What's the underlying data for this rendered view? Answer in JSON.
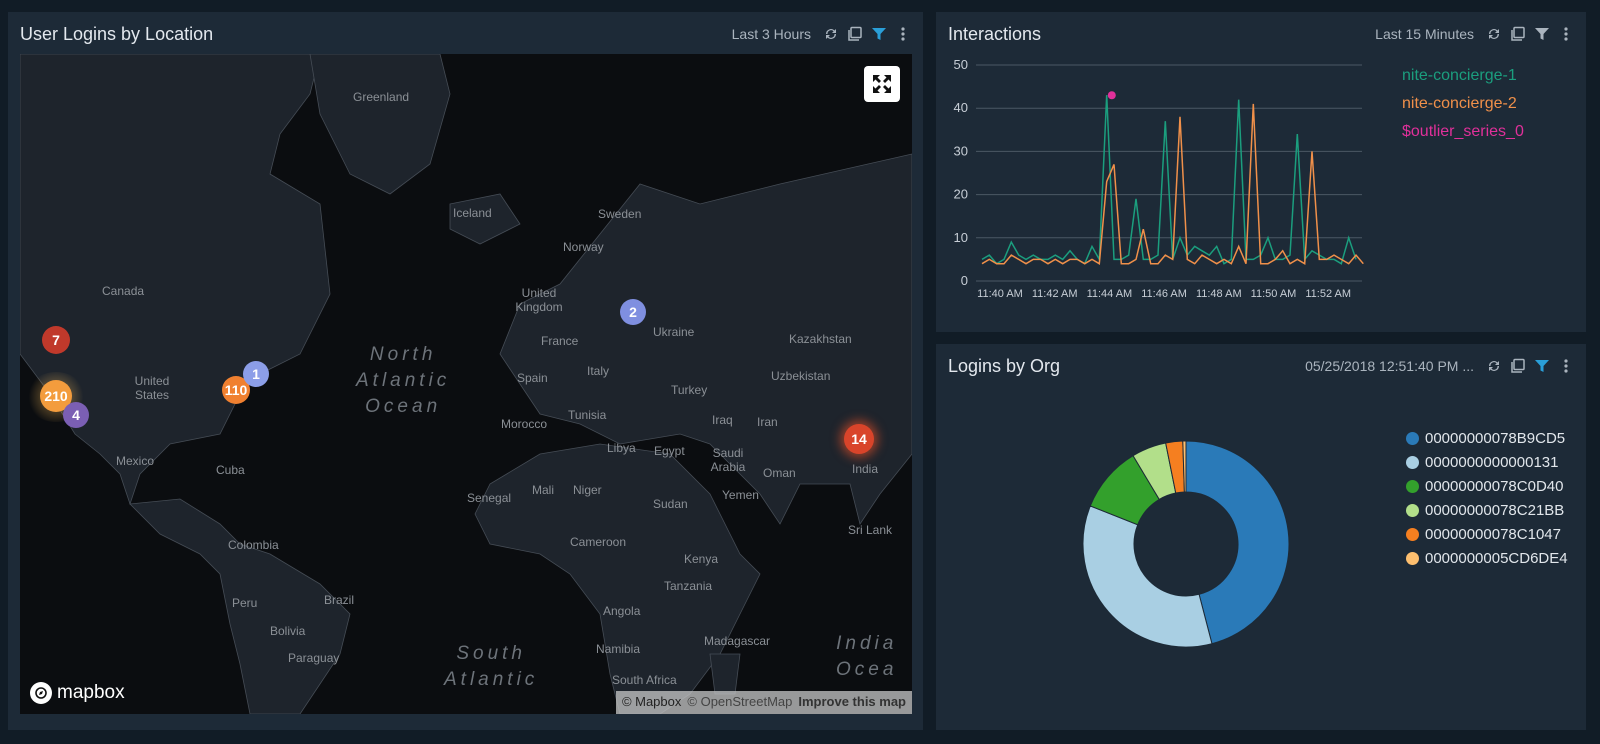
{
  "map_panel": {
    "title": "User Logins by Location",
    "time_range": "Last 3 Hours",
    "icons": [
      "refresh-icon",
      "copy-icon",
      "filter-icon",
      "more-icon"
    ],
    "clusters": [
      {
        "label": "7",
        "color": "#c0392b"
      },
      {
        "label": "210",
        "color": "#f39c3d"
      },
      {
        "label": "4",
        "color": "#7b5fb4"
      },
      {
        "label": "110",
        "color": "#f08030"
      },
      {
        "label": "1",
        "color": "#8c9ee8"
      },
      {
        "label": "2",
        "color": "#7f8fe0"
      },
      {
        "label": "14",
        "color": "#d9442a"
      }
    ],
    "places": [
      "Greenland",
      "Iceland",
      "Sweden",
      "Norway",
      "Canada",
      "United Kingdom",
      "France",
      "Ukraine",
      "Kazakhstan",
      "Spain",
      "Italy",
      "Turkey",
      "Uzbekistan",
      "United States",
      "Tunisia",
      "Morocco",
      "Iraq",
      "Iran",
      "Libya",
      "Egypt",
      "Saudi Arabia",
      "Oman",
      "India",
      "Mexico",
      "Cuba",
      "Mali",
      "Niger",
      "Senegal",
      "Sudan",
      "Yemen",
      "Sri Lank",
      "Colombia",
      "Cameroon",
      "Kenya",
      "Tanzania",
      "Peru",
      "Brazil",
      "Bolivia",
      "Angola",
      "Paraguay",
      "Madagascar",
      "Namibia",
      "South Africa"
    ],
    "oceans": [
      [
        "North",
        "Atlantic",
        "Ocean"
      ],
      [
        "South",
        "Atlantic"
      ],
      [
        "India",
        "Ocea"
      ]
    ],
    "logo": "mapbox",
    "attribution": {
      "mapbox": "© Mapbox",
      "osm": "© OpenStreetMap",
      "improve": "Improve this map"
    }
  },
  "interactions_panel": {
    "title": "Interactions",
    "time_range": "Last 15 Minutes",
    "legend": [
      {
        "name": "nite-concierge-1",
        "color": "#1b9e7e"
      },
      {
        "name": "nite-concierge-2",
        "color": "#f0904a"
      },
      {
        "name": "$outlier_series_0",
        "color": "#e0309a"
      }
    ]
  },
  "org_panel": {
    "title": "Logins by Org",
    "time_range": "05/25/2018 12:51:40 PM ..."
  },
  "chart_data": [
    {
      "type": "line",
      "title": "Interactions",
      "ylim": [
        0,
        50
      ],
      "yticks": [
        0,
        10,
        20,
        30,
        40,
        50
      ],
      "xticks": [
        "11:40 AM",
        "11:42 AM",
        "11:44 AM",
        "11:46 AM",
        "11:48 AM",
        "11:50 AM",
        "11:52 AM"
      ],
      "x_minutes_range": [
        "11:39 AM",
        "11:54 AM"
      ],
      "grid": true,
      "series": [
        {
          "name": "nite-concierge-1",
          "color": "#1b9e7e",
          "values": [
            5,
            6,
            4,
            5,
            9,
            6,
            5,
            6,
            5,
            5,
            6,
            5,
            7,
            5,
            4,
            8,
            5,
            43,
            5,
            5,
            6,
            19,
            5,
            5,
            6,
            37,
            5,
            10,
            6,
            8,
            7,
            6,
            8,
            4,
            5,
            42,
            5,
            5,
            6,
            10,
            5,
            5,
            6,
            34,
            5,
            7,
            6,
            5,
            5,
            4,
            10,
            5
          ]
        },
        {
          "name": "nite-concierge-2",
          "color": "#f0904a",
          "values": [
            4,
            5,
            4,
            4,
            6,
            5,
            4,
            5,
            5,
            4,
            5,
            4,
            5,
            5,
            4,
            5,
            4,
            23,
            27,
            4,
            4,
            5,
            12,
            4,
            4,
            6,
            5,
            38,
            5,
            4,
            6,
            5,
            4,
            5,
            4,
            8,
            4,
            41,
            4,
            4,
            5,
            7,
            4,
            5,
            4,
            30,
            5,
            5,
            6,
            5,
            4,
            6,
            4
          ]
        },
        {
          "name": "$outlier_series_0",
          "color": "#e0309a",
          "points": [
            {
              "x_index": 17.7,
              "y": 43
            }
          ]
        }
      ]
    },
    {
      "type": "pie",
      "title": "Logins by Org",
      "donut": true,
      "labels": [
        "00000000078B9CD5",
        "0000000000000131",
        "00000000078C0D40",
        "00000000078C21BB",
        "00000000078C1047",
        "0000000005CD6DE4"
      ],
      "values": [
        46.5,
        35.5,
        10.5,
        5.5,
        2.7,
        0.5
      ],
      "colors": [
        "#2a7ab8",
        "#a9cfe3",
        "#33a02c",
        "#b2df8a",
        "#f57f20",
        "#fdbf6f"
      ]
    }
  ]
}
